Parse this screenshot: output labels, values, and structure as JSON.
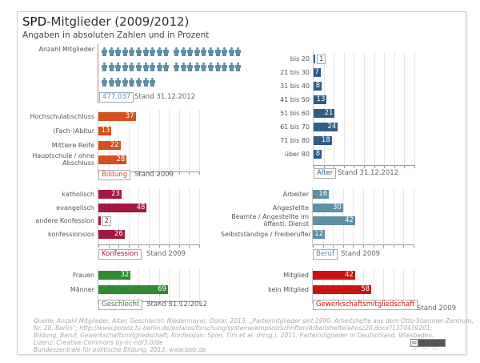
{
  "header": {
    "title_brand": "SPD",
    "title_rest": "-Mitglieder (2009/2012)",
    "subtitle": "Angaben in absoluten Zahlen und in Prozent"
  },
  "members": {
    "label": "Anzahl Mitglieder",
    "value": "477.037",
    "stand": "Stand 31.12.2012",
    "icon": "person-icon",
    "icon_count": 48,
    "icon_groups_per_row": [
      [
        10,
        10
      ],
      [
        10,
        10
      ],
      [
        8
      ]
    ],
    "color": "#5e8fa4"
  },
  "chart_data": [
    {
      "type": "bar",
      "title": "Bildung",
      "stand": "Stand 2009",
      "color": "#d4501e",
      "categories": [
        "Hochschulabschluss",
        "(Fach-)Abitur",
        "Mittlere Reife",
        "Hauptschule / ohne Abschluss"
      ],
      "values": [
        37,
        13,
        22,
        28
      ],
      "xlim": [
        0,
        100
      ],
      "grid": true
    },
    {
      "type": "bar",
      "title": "Alter",
      "stand": "Stand 31.12.2012",
      "color": "#2f5d87",
      "categories": [
        "bis 20",
        "21 bis 30",
        "31 bis 40",
        "41 bis 50",
        "51 bis 60",
        "61 bis 70",
        "71 bis 80",
        "über 80"
      ],
      "values": [
        1,
        7,
        8,
        13,
        21,
        24,
        18,
        8
      ],
      "xlim": [
        0,
        100
      ],
      "grid": true
    },
    {
      "type": "bar",
      "title": "Konfession",
      "stand": "Stand 2009",
      "color": "#a3183e",
      "categories": [
        "katholisch",
        "evangelisch",
        "andere Konfession",
        "konfessionslos"
      ],
      "values": [
        23,
        48,
        2,
        26
      ],
      "xlim": [
        0,
        100
      ],
      "grid": true
    },
    {
      "type": "bar",
      "title": "Beruf",
      "stand": "Stand 2009",
      "color": "#5e8fa4",
      "categories": [
        "Arbeiter",
        "Angestellte",
        "Beamte / Angestellte im öffentl. Dienst",
        "Selbstständige / Freiberufler"
      ],
      "values": [
        16,
        30,
        42,
        12
      ],
      "xlim": [
        0,
        100
      ],
      "grid": true
    },
    {
      "type": "bar",
      "title": "Geschlecht",
      "stand": "Stand 31.12.2012",
      "color": "#2e8b2e",
      "categories": [
        "Frauen",
        "Männer"
      ],
      "values": [
        32,
        69
      ],
      "xlim": [
        0,
        100
      ],
      "grid": true
    },
    {
      "type": "bar",
      "title": "Gewerkschaftsmitgliedschaft",
      "stand": "Stand 2009",
      "color": "#cc1111",
      "categories": [
        "Mitglied",
        "kein Mitglied"
      ],
      "values": [
        42,
        58
      ],
      "xlim": [
        0,
        100
      ],
      "grid": true
    }
  ],
  "source": {
    "lines": [
      "Quelle: Anzahl Mitglieder, Alter, Geschlecht: Niedermayer, Oskar, 2013: „Parteimitglieder seit 1990. Arbeitshefte aus dem Otto-Stammer-Zentrum,",
      "Nr. 20, Berlin\"; http://www.polsoz.fu-berlin.de/polwiss/forschung/systeme/empsoz/schriften/Arbeitshefte/ahosz20.docx?1370439201;",
      "Bildung, Beruf, Gewerkschaftsmitgliedschaft, Konfession: Spier, Tim et al. (Hrsg.), 2011: Parteimitglieder in Deutschland. Wiesbaden.",
      "Lizenz: Creative Commons by-nc-nd/3.0/de",
      "Bundeszentrale für politische Bildung, 2013, www.bpb.de"
    ],
    "license_badge": "BY - NC - ND",
    "license_icon": "cc-icon"
  }
}
